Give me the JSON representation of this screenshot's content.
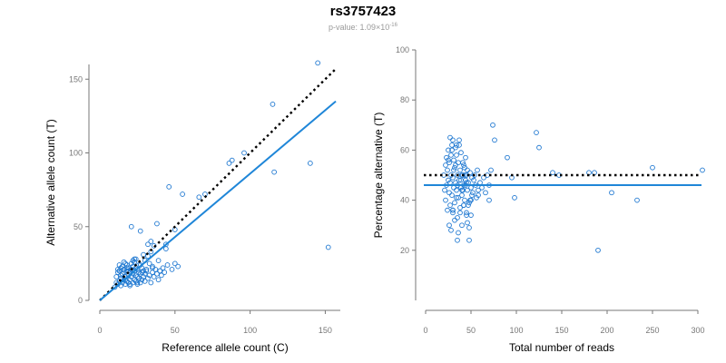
{
  "chart_data": [
    {
      "type": "scatter",
      "title": "rs3757423",
      "subtitle_prefix": "p-value: 1.09×10",
      "subtitle_exponent": "-16",
      "xlabel": "Reference allele count (C)",
      "ylabel": "Alternative allele count (T)",
      "xlim": [
        0,
        160
      ],
      "ylim": [
        0,
        160
      ],
      "xticks": [
        "0",
        "50",
        "100",
        "150"
      ],
      "yticks": [
        "0",
        "50",
        "100",
        "150"
      ],
      "reference_line": {
        "x": [
          0,
          157
        ],
        "y": [
          0,
          157
        ],
        "style": "dotted",
        "color": "#000000"
      },
      "fit_line": {
        "x": [
          0,
          157
        ],
        "y": [
          0,
          135
        ],
        "color": "#1f86d8"
      },
      "point_color": "#1f78d1",
      "x": [
        10,
        11,
        11,
        12,
        12,
        13,
        13,
        13,
        14,
        14,
        14,
        15,
        15,
        15,
        16,
        16,
        16,
        17,
        17,
        17,
        18,
        18,
        18,
        19,
        19,
        19,
        20,
        20,
        20,
        21,
        21,
        21,
        22,
        22,
        22,
        23,
        23,
        23,
        24,
        24,
        24,
        25,
        25,
        25,
        26,
        26,
        26,
        27,
        27,
        28,
        28,
        29,
        29,
        30,
        30,
        31,
        32,
        33,
        33,
        34,
        35,
        35,
        36,
        37,
        38,
        39,
        40,
        41,
        42,
        43,
        45,
        48,
        50,
        52,
        13,
        15,
        17,
        18,
        20,
        22,
        24,
        26,
        28,
        30,
        32,
        35,
        12,
        14,
        16,
        19,
        21,
        23,
        25,
        27,
        29,
        31,
        34,
        36,
        40,
        44,
        21,
        27,
        32,
        34,
        38,
        39,
        44,
        46,
        50,
        55,
        66,
        70,
        86,
        88,
        96,
        115,
        116,
        140,
        145,
        152
      ],
      "y": [
        9,
        12,
        16,
        11,
        19,
        13,
        20,
        24,
        10,
        15,
        22,
        12,
        18,
        23,
        14,
        19,
        21,
        11,
        16,
        25,
        13,
        20,
        24,
        12,
        17,
        22,
        11,
        14,
        19,
        16,
        21,
        25,
        12,
        18,
        23,
        14,
        20,
        26,
        13,
        17,
        22,
        11,
        16,
        21,
        15,
        19,
        24,
        12,
        18,
        14,
        22,
        16,
        20,
        13,
        18,
        21,
        15,
        17,
        25,
        12,
        19,
        23,
        16,
        21,
        18,
        14,
        20,
        17,
        22,
        19,
        24,
        21,
        25,
        23,
        20,
        18,
        14,
        22,
        10,
        27,
        28,
        15,
        19,
        27,
        30,
        22,
        21,
        17,
        26,
        20,
        16,
        28,
        12,
        24,
        31,
        20,
        33,
        37,
        20,
        38,
        50,
        47,
        38,
        40,
        52,
        27,
        35,
        77,
        48,
        72,
        70,
        72,
        93,
        95,
        100,
        133,
        87,
        93,
        161,
        36
      ]
    },
    {
      "type": "scatter",
      "xlabel": "Total number of reads",
      "ylabel": "Percentage alternative (T)",
      "xlim": [
        0,
        300
      ],
      "ylim": [
        0,
        100
      ],
      "xticks": [
        "0",
        "50",
        "100",
        "150",
        "200",
        "250",
        "300"
      ],
      "yticks": [
        "20",
        "40",
        "60",
        "80",
        "100"
      ],
      "reference_line": {
        "y": 50,
        "style": "dotted",
        "color": "#000000"
      },
      "fit_line": {
        "y": 46,
        "color": "#1f86d8"
      },
      "point_color": "#1f78d1",
      "x": [
        20,
        21,
        22,
        22,
        23,
        23,
        24,
        24,
        25,
        25,
        26,
        26,
        27,
        27,
        28,
        28,
        29,
        29,
        30,
        30,
        31,
        31,
        32,
        32,
        33,
        33,
        34,
        34,
        35,
        35,
        36,
        36,
        37,
        37,
        38,
        38,
        39,
        39,
        40,
        40,
        41,
        41,
        42,
        42,
        43,
        43,
        44,
        44,
        45,
        45,
        46,
        46,
        47,
        48,
        49,
        50,
        51,
        52,
        53,
        54,
        55,
        56,
        57,
        58,
        60,
        62,
        64,
        66,
        68,
        70,
        72,
        25,
        27,
        29,
        31,
        33,
        35,
        37,
        39,
        41,
        43,
        45,
        47,
        49,
        51,
        26,
        28,
        30,
        32,
        34,
        36,
        38,
        40,
        42,
        44,
        46,
        48,
        50,
        30,
        35,
        40,
        45,
        48,
        50,
        30,
        34,
        42,
        58,
        70,
        74,
        76,
        90,
        95,
        98,
        122,
        125,
        140,
        147,
        180,
        186,
        190,
        205,
        233,
        250,
        305
      ],
      "y": [
        50,
        44,
        54,
        40,
        57,
        46,
        52,
        36,
        48,
        60,
        43,
        55,
        47,
        38,
        58,
        50,
        42,
        62,
        49,
        35,
        56,
        45,
        53,
        39,
        61,
        47,
        44,
        58,
        50,
        33,
        55,
        41,
        64,
        48,
        37,
        52,
        45,
        59,
        42,
        30,
        50,
        55,
        46,
        38,
        53,
        40,
        48,
        57,
        35,
        50,
        44,
        52,
        47,
        39,
        51,
        45,
        49,
        43,
        48,
        50,
        46,
        41,
        52,
        44,
        47,
        45,
        49,
        43,
        50,
        46,
        52,
        56,
        65,
        60,
        52,
        54,
        46,
        62,
        48,
        44,
        50,
        34,
        38,
        40,
        42,
        30,
        28,
        36,
        32,
        41,
        27,
        35,
        44,
        38,
        46,
        31,
        29,
        34,
        36,
        24,
        50,
        47,
        24,
        40,
        64,
        62,
        54,
        42,
        40,
        70,
        64,
        57,
        49,
        41,
        67,
        61,
        51,
        50,
        51,
        51,
        20,
        43,
        40,
        53,
        52
      ]
    }
  ]
}
